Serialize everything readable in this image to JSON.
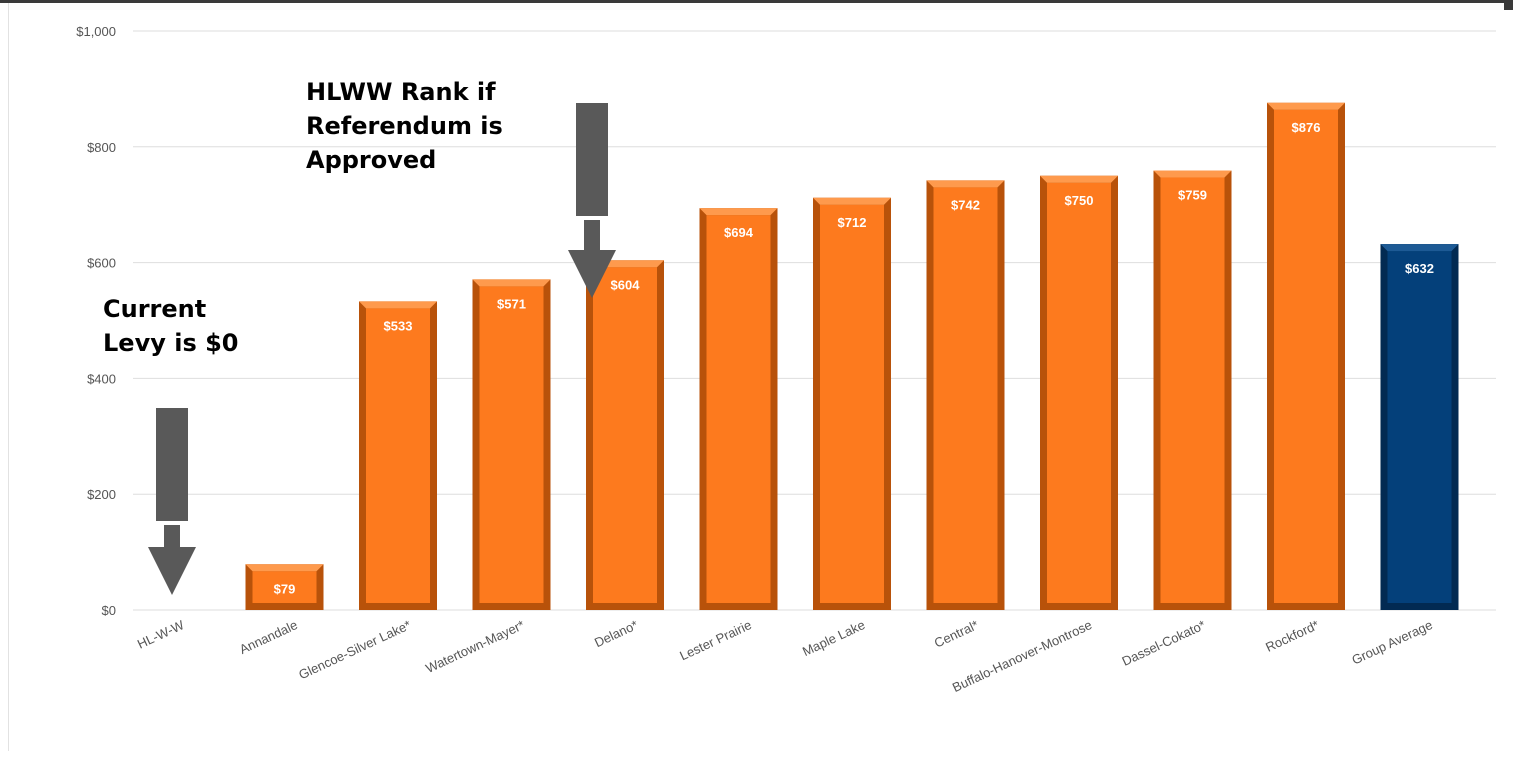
{
  "chart_data": {
    "type": "bar",
    "categories": [
      "HL-W-W",
      "Annandale",
      "Glencoe-Silver Lake*",
      "Watertown-Mayer*",
      "Delano*",
      "Lester Prairie",
      "Maple Lake",
      "Central*",
      "Buffalo-Hanover-Montrose",
      "Dassel-Cokato*",
      "Rockford*",
      "Group Average"
    ],
    "values": [
      0,
      79,
      533,
      571,
      604,
      694,
      712,
      742,
      750,
      759,
      876,
      632
    ],
    "value_labels": [
      "",
      "$79",
      "$533",
      "$571",
      "$604",
      "$694",
      "$712",
      "$742",
      "$750",
      "$759",
      "$876",
      "$632"
    ],
    "ylim": [
      0,
      1000
    ],
    "yticks": [
      0,
      200,
      400,
      600,
      800,
      1000
    ],
    "ytick_labels": [
      "$0",
      "$200",
      "$400",
      "$600",
      "$800",
      "$1,000"
    ],
    "grid": true,
    "bar_color": "#fd7a1e",
    "bar_edge_color": "#b8520a",
    "highlight_index": 11,
    "highlight_color": "#04407a",
    "highlight_edge_color": "#022a52"
  },
  "annotations": {
    "referendum": {
      "lines": [
        "HLWW Rank if",
        "Referendum is",
        "Approved"
      ]
    },
    "current": {
      "lines": [
        "Current",
        "Levy is $0"
      ]
    },
    "arrow_color": "#595959"
  }
}
